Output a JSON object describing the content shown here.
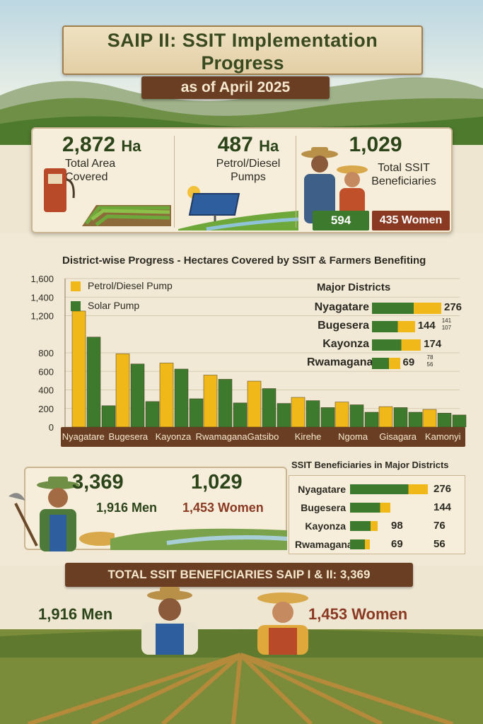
{
  "header": {
    "title_line1": "SAIP II: SSIT Implementation",
    "title_line2": "Progress",
    "subtitle": "as of April 2025"
  },
  "stats": {
    "area_value": "2,872",
    "area_unit": "Ha",
    "area_label_1": "Total Area",
    "area_label_2": "Covered",
    "pumps_value": "487",
    "pumps_unit": "Ha",
    "pumps_label_1": "Petrol/Diesel",
    "pumps_label_2": "Pumps",
    "benef_value": "1,029",
    "benef_label_1": "Total SSIT",
    "benef_label_2": "Beneficiaries",
    "men_chip": "594",
    "women_chip": "435 Women"
  },
  "chart_data": [
    {
      "type": "bar",
      "title": "District-wise Progress - Hectares Covered by SSIT & Farmers Benefiting",
      "categories": [
        "Nyagatare",
        "Bugesera",
        "Kayonza",
        "Rwamagana",
        "Gatsibo",
        "Kirehe",
        "Ngoma",
        "Gisagara",
        "Kamonyi"
      ],
      "series": [
        {
          "name": "Petrol/Diesel Pump",
          "color": "#f0b818",
          "values": [
            1250,
            790,
            690,
            560,
            495,
            320,
            270,
            220,
            190
          ]
        },
        {
          "name": "Solar Pump",
          "color": "#3d7a2e",
          "values": [
            970,
            680,
            625,
            515,
            415,
            285,
            240,
            210,
            150
          ]
        },
        {
          "name": "",
          "color": "#3d7a2e",
          "values": [
            230,
            275,
            305,
            260,
            255,
            210,
            160,
            160,
            130
          ]
        }
      ],
      "y_ticks": [
        "1,600",
        "1,400",
        "1,200",
        "800",
        "600",
        "400",
        "200",
        "0"
      ],
      "ylim": [
        0,
        1600
      ],
      "legend": "top-left",
      "grid": true
    },
    {
      "type": "bar",
      "title": "Major Districts",
      "categories": [
        "Nyagatare",
        "Bugesera",
        "Kayonza",
        "Rwamagana"
      ],
      "values": [
        276,
        144,
        174,
        69
      ],
      "annotations": [
        "",
        "141 / 107",
        "",
        "78 / 56"
      ]
    },
    {
      "type": "bar",
      "title": "SSIT Beneficiaries in Major Districts",
      "categories": [
        "Nyagatare",
        "Bugesera",
        "Kayonza",
        "Rwamagana"
      ],
      "series": [
        {
          "name": "",
          "values": [
            276,
            144,
            98,
            69
          ]
        },
        {
          "name": "",
          "values": [
            null,
            null,
            76,
            56
          ]
        }
      ]
    }
  ],
  "legend": {
    "petrol": "Petrol/Diesel Pump",
    "solar": "Solar Pump"
  },
  "major_districts": {
    "title": "Major Districts",
    "rows": [
      {
        "name": "Nyagatare",
        "value": "276",
        "note": ""
      },
      {
        "name": "Bugesera",
        "value": "144",
        "note1": "141",
        "note2": "107"
      },
      {
        "name": "Kayonza",
        "value": "174",
        "note": ""
      },
      {
        "name": "Rwamagana",
        "value": "69",
        "note1": "78",
        "note2": "56"
      }
    ]
  },
  "beneficiaries": {
    "total": "3,369",
    "men": "1,916 Men",
    "saip2_total": "1,029",
    "women": "1,453 Women"
  },
  "bene_districts": {
    "title": "SSIT Beneficiaries in Major Districts",
    "rows": [
      {
        "name": "Nyagatare",
        "value": "276",
        "value2": ""
      },
      {
        "name": "Bugesera",
        "value": "144",
        "value2": ""
      },
      {
        "name": "Kayonza",
        "value": "98",
        "value2": "76"
      },
      {
        "name": "Rwamagana",
        "value": "69",
        "value2": "56"
      }
    ]
  },
  "footer": {
    "banner": "TOTAL SSIT BENEFICIARIES SAIP I & II: 3,369",
    "men": "1,916 Men",
    "women": "1,453 Women"
  },
  "colors": {
    "green": "#3d7a2e",
    "yellow": "#f0b818",
    "brown": "#6a3e22",
    "parchment": "#f6eedb"
  }
}
